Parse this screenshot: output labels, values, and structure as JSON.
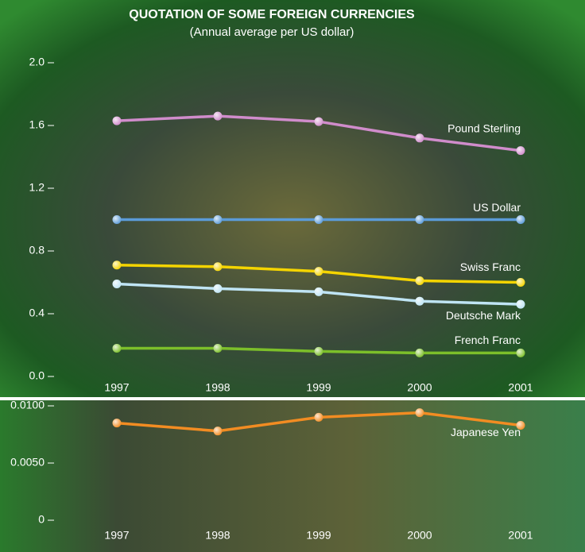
{
  "chart_data": [
    {
      "type": "line",
      "title": "QUOTATION OF SOME FOREIGN CURRENCIES",
      "subtitle": "(Annual average per US dollar)",
      "categories": [
        "1997",
        "1998",
        "1999",
        "2000",
        "2001"
      ],
      "series": [
        {
          "name": "Pound Sterling",
          "color": "#d08ccb",
          "values": [
            1.63,
            1.66,
            1.625,
            1.52,
            1.44
          ]
        },
        {
          "name": "US Dollar",
          "color": "#5b9bd8",
          "values": [
            1.0,
            1.0,
            1.0,
            1.0,
            1.0
          ]
        },
        {
          "name": "Swiss Franc",
          "color": "#f4d400",
          "values": [
            0.71,
            0.7,
            0.67,
            0.61,
            0.6
          ]
        },
        {
          "name": "Deutsche Mark",
          "color": "#bfe4f4",
          "values": [
            0.59,
            0.56,
            0.54,
            0.48,
            0.46
          ]
        },
        {
          "name": "French Franc",
          "color": "#7cbf2a",
          "values": [
            0.18,
            0.18,
            0.16,
            0.15,
            0.15
          ]
        }
      ],
      "ylim": [
        0,
        2.0
      ],
      "yticks": [
        {
          "value": 0,
          "label": "0.0"
        },
        0.4,
        0.8,
        1.2,
        1.6,
        {
          "value": 2,
          "label": "2.0"
        }
      ]
    },
    {
      "type": "line",
      "categories": [
        "1997",
        "1998",
        "1999",
        "2000",
        "2001"
      ],
      "series": [
        {
          "name": "Japanese Yen",
          "color": "#f28c22",
          "values": [
            0.0085,
            0.0078,
            0.009,
            0.0094,
            0.0083
          ]
        }
      ],
      "ylim": [
        0,
        0.01
      ],
      "yticks": [
        0,
        {
          "value": 0.005,
          "label": "0.0050"
        },
        {
          "value": 0.01,
          "label": "0.0100"
        }
      ]
    }
  ]
}
